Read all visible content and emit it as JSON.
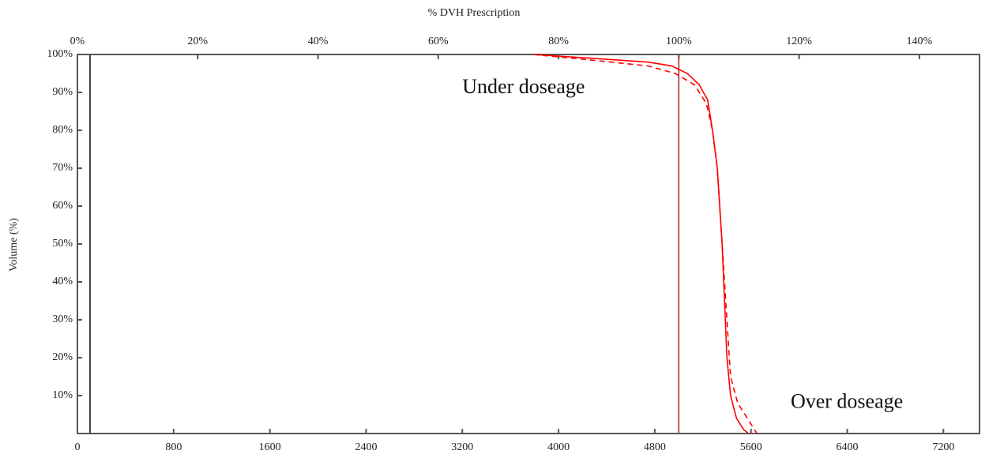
{
  "chart_data": {
    "type": "line",
    "x2_label": "% DVH Prescription",
    "y_label": "Volume (%)",
    "xlim": [
      0,
      7500
    ],
    "xticks": [
      0,
      800,
      1600,
      2400,
      3200,
      4000,
      4800,
      5600,
      6400,
      7200
    ],
    "x2lim": [
      0,
      150
    ],
    "x2ticks": [
      {
        "value": 0,
        "label": "0%"
      },
      {
        "value": 20,
        "label": "20%"
      },
      {
        "value": 40,
        "label": "40%"
      },
      {
        "value": 60,
        "label": "60%"
      },
      {
        "value": 80,
        "label": "80%"
      },
      {
        "value": 100,
        "label": "100%"
      },
      {
        "value": 120,
        "label": "120%"
      },
      {
        "value": 140,
        "label": "140%"
      }
    ],
    "ylim": [
      0,
      100
    ],
    "yticks": [
      {
        "value": 10,
        "label": "10%"
      },
      {
        "value": 20,
        "label": "20%"
      },
      {
        "value": 30,
        "label": "30%"
      },
      {
        "value": 40,
        "label": "40%"
      },
      {
        "value": 50,
        "label": "50%"
      },
      {
        "value": 60,
        "label": "60%"
      },
      {
        "value": 70,
        "label": "70%"
      },
      {
        "value": 80,
        "label": "80%"
      },
      {
        "value": 90,
        "label": "90%"
      },
      {
        "value": 100,
        "label": "100%"
      }
    ],
    "vline": 5000,
    "vline_color": "#b22222",
    "series": [
      {
        "color": "#ff0000",
        "linestyle": "solid",
        "x": [
          3790,
          4280,
          4740,
          4940,
          5070,
          5170,
          5240,
          5280,
          5320,
          5340,
          5360,
          5380,
          5400,
          5430,
          5480,
          5540,
          5580
        ],
        "values": [
          100,
          99,
          98,
          97,
          95,
          92,
          88,
          80,
          70,
          60,
          50,
          35,
          20,
          10,
          4,
          1,
          0
        ]
      },
      {
        "color": "#ff0000",
        "linestyle": "dashed",
        "x": [
          3790,
          4280,
          4740,
          4970,
          5130,
          5230,
          5280,
          5320,
          5340,
          5360,
          5400,
          5430,
          5490,
          5590,
          5650
        ],
        "values": [
          100,
          98.5,
          97,
          95,
          92,
          87,
          80,
          70,
          60,
          50,
          30,
          15,
          8,
          3,
          0
        ]
      }
    ],
    "annotations": [
      {
        "text": "Under doseage",
        "x": 3200,
        "y": 91
      },
      {
        "text": "Over doseage",
        "x": 5930,
        "y": 8
      }
    ]
  }
}
